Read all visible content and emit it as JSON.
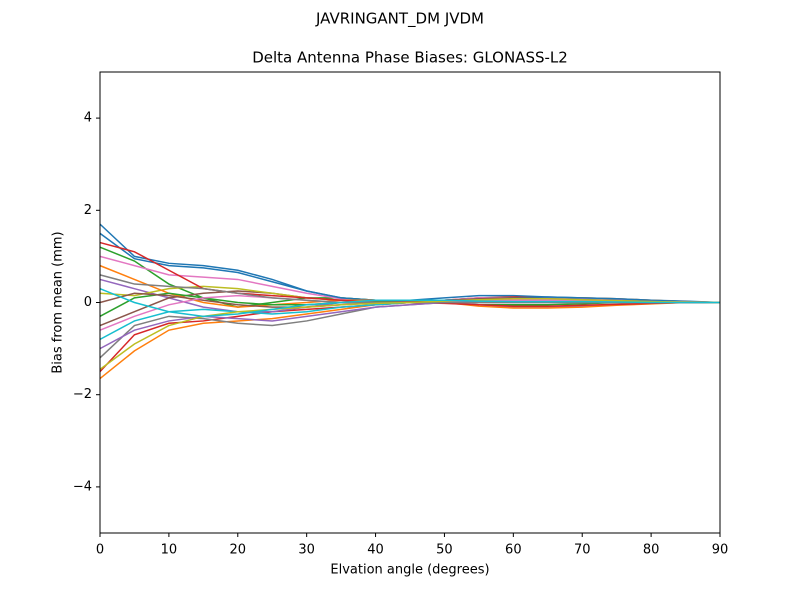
{
  "chart_data": {
    "type": "line",
    "suptitle": "JAVRINGANT_DM   JVDM",
    "title": "Delta Antenna Phase Biases: GLONASS-L2",
    "x_label": "Elvation angle (degrees)",
    "y_label": "Bias from mean (mm)",
    "x": [
      0,
      5,
      10,
      15,
      20,
      25,
      30,
      35,
      40,
      45,
      50,
      55,
      60,
      65,
      70,
      75,
      80,
      85,
      90
    ],
    "xlim": [
      0,
      90
    ],
    "xticks": [
      0,
      10,
      20,
      30,
      40,
      50,
      60,
      70,
      80,
      90
    ],
    "ylim": [
      -5,
      5
    ],
    "yticks": [
      {
        "value": -4,
        "label": "−4"
      },
      {
        "value": -2,
        "label": "−2"
      },
      0,
      2,
      4
    ],
    "grid": false,
    "series": [
      {
        "color": "#1f77b4",
        "values": [
          1.7,
          1.0,
          0.85,
          0.8,
          0.7,
          0.5,
          0.25,
          0.1,
          0.05,
          0.05,
          0.1,
          0.15,
          0.15,
          0.12,
          0.1,
          0.08,
          0.05,
          0.03,
          0
        ]
      },
      {
        "color": "#ff7f0e",
        "values": [
          -1.65,
          -1.05,
          -0.6,
          -0.45,
          -0.4,
          -0.35,
          -0.25,
          -0.15,
          -0.05,
          0,
          0.05,
          0.1,
          0.1,
          0.1,
          0.1,
          0.08,
          0.05,
          0.02,
          0
        ]
      },
      {
        "color": "#2ca02c",
        "values": [
          1.2,
          0.9,
          0.4,
          0.1,
          -0.1,
          0,
          0.1,
          0.1,
          0.05,
          0,
          0,
          -0.05,
          -0.05,
          -0.05,
          -0.03,
          0,
          0,
          0,
          0
        ]
      },
      {
        "color": "#d62728",
        "values": [
          -1.5,
          -0.7,
          -0.45,
          -0.4,
          -0.3,
          -0.2,
          -0.15,
          -0.1,
          -0.05,
          0,
          0.05,
          0.1,
          0.12,
          0.1,
          0.08,
          0.05,
          0.03,
          0.01,
          0
        ]
      },
      {
        "color": "#9467bd",
        "values": [
          0.5,
          0.3,
          0.1,
          -0.1,
          -0.2,
          -0.2,
          -0.1,
          0,
          0.05,
          0.05,
          0,
          -0.05,
          -0.1,
          -0.1,
          -0.08,
          -0.05,
          -0.02,
          0,
          0
        ]
      },
      {
        "color": "#8c564b",
        "values": [
          -0.5,
          -0.2,
          0.1,
          0.2,
          0.25,
          0.2,
          0.1,
          0.05,
          0,
          0,
          0,
          0.05,
          0.05,
          0.05,
          0.03,
          0.02,
          0.01,
          0,
          0
        ]
      },
      {
        "color": "#e377c2",
        "values": [
          1.0,
          0.8,
          0.6,
          0.55,
          0.5,
          0.35,
          0.2,
          0.08,
          0.05,
          0.05,
          0.05,
          0.1,
          0.1,
          0.1,
          0.08,
          0.06,
          0.04,
          0.02,
          0
        ]
      },
      {
        "color": "#7f7f7f",
        "values": [
          -1.2,
          -0.5,
          -0.3,
          -0.35,
          -0.45,
          -0.5,
          -0.4,
          -0.25,
          -0.1,
          -0.05,
          0,
          0,
          0,
          0,
          0,
          0,
          0,
          0,
          0
        ]
      },
      {
        "color": "#bcbd22",
        "values": [
          0.2,
          0.15,
          0.3,
          0.35,
          0.3,
          0.2,
          0.1,
          0.05,
          0.05,
          0.05,
          0.05,
          0.05,
          0.05,
          0.05,
          0.05,
          0.03,
          0.02,
          0.01,
          0
        ]
      },
      {
        "color": "#17becf",
        "values": [
          -0.8,
          -0.4,
          -0.2,
          -0.15,
          -0.2,
          -0.25,
          -0.2,
          -0.1,
          -0.05,
          0,
          0.05,
          0.05,
          0.08,
          0.08,
          0.06,
          0.04,
          0.02,
          0.01,
          0
        ]
      },
      {
        "color": "#1f77b4",
        "values": [
          1.5,
          0.95,
          0.8,
          0.75,
          0.65,
          0.45,
          0.25,
          0.1,
          0.05,
          0.03,
          0.05,
          0.08,
          0.1,
          0.12,
          0.1,
          0.08,
          0.05,
          0.02,
          0
        ]
      },
      {
        "color": "#ff7f0e",
        "values": [
          0.8,
          0.5,
          0.2,
          0,
          -0.1,
          -0.05,
          0,
          0.05,
          0.05,
          0.05,
          0,
          -0.08,
          -0.12,
          -0.12,
          -0.1,
          -0.06,
          -0.03,
          0,
          0
        ]
      },
      {
        "color": "#2ca02c",
        "values": [
          -0.3,
          0.1,
          0.2,
          0.1,
          0,
          -0.05,
          -0.05,
          0,
          0.02,
          0.05,
          0.05,
          0.05,
          0.05,
          0.05,
          0.05,
          0.03,
          0.02,
          0,
          0
        ]
      },
      {
        "color": "#d62728",
        "values": [
          1.3,
          1.1,
          0.7,
          0.3,
          0.2,
          0.15,
          0.1,
          0.05,
          0,
          0,
          -0.02,
          -0.05,
          -0.08,
          -0.08,
          -0.06,
          -0.04,
          -0.02,
          0,
          0
        ]
      },
      {
        "color": "#9467bd",
        "values": [
          -1.0,
          -0.6,
          -0.4,
          -0.3,
          -0.35,
          -0.4,
          -0.3,
          -0.2,
          -0.1,
          -0.05,
          0,
          0.03,
          0.05,
          0.05,
          0.04,
          0.03,
          0.02,
          0.01,
          0
        ]
      },
      {
        "color": "#8c564b",
        "values": [
          0.0,
          0.2,
          0.15,
          0.05,
          -0.05,
          -0.1,
          -0.1,
          -0.05,
          0,
          0.02,
          0.05,
          0.08,
          0.1,
          0.08,
          0.06,
          0.04,
          0.02,
          0,
          0
        ]
      },
      {
        "color": "#e377c2",
        "values": [
          -0.6,
          -0.3,
          -0.05,
          0.1,
          0.15,
          0.1,
          0.05,
          0,
          0,
          0,
          0.02,
          0.05,
          0.05,
          0.05,
          0.05,
          0.03,
          0.02,
          0.01,
          0
        ]
      },
      {
        "color": "#7f7f7f",
        "values": [
          0.6,
          0.4,
          0.35,
          0.3,
          0.2,
          0.1,
          0.05,
          0,
          0,
          0,
          0,
          0,
          0,
          0,
          0,
          0,
          0,
          0,
          0
        ]
      },
      {
        "color": "#bcbd22",
        "values": [
          -1.45,
          -0.9,
          -0.5,
          -0.3,
          -0.2,
          -0.15,
          -0.1,
          -0.05,
          -0.02,
          0,
          0.03,
          0.06,
          0.08,
          0.08,
          0.06,
          0.04,
          0.02,
          0.01,
          0
        ]
      },
      {
        "color": "#17becf",
        "values": [
          0.3,
          0.0,
          -0.2,
          -0.3,
          -0.25,
          -0.15,
          -0.05,
          0,
          0.05,
          0.05,
          0.05,
          0.03,
          0.02,
          0.02,
          0.02,
          0.01,
          0,
          0,
          0
        ]
      }
    ]
  }
}
